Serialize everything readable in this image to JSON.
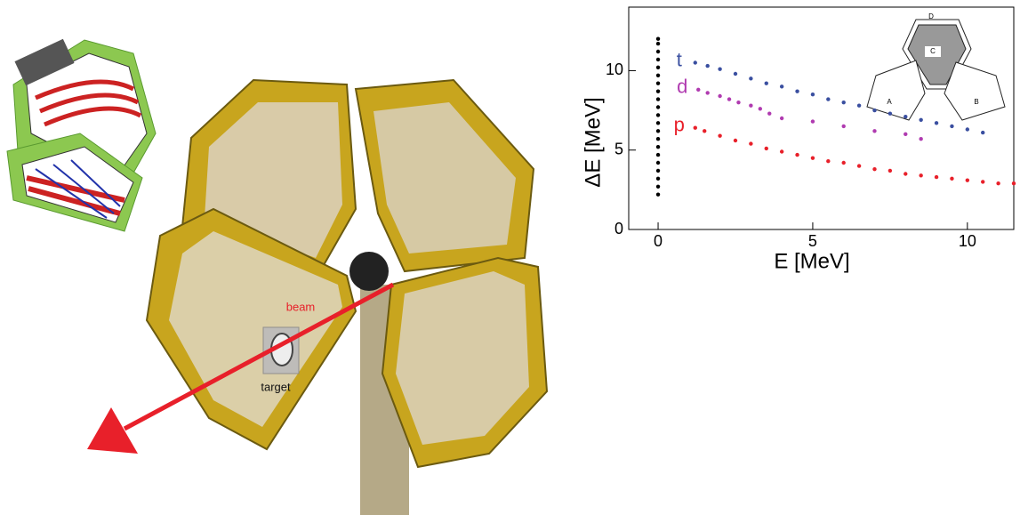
{
  "photo_labels": {
    "beam": "beam",
    "target": "target"
  },
  "inset": {
    "labels": [
      "A",
      "B",
      "C",
      "D"
    ]
  },
  "chart_data": {
    "type": "scatter",
    "x_label": "E  [MeV]",
    "y_label": "ΔE  [MeV]",
    "xlim": [
      -0.95,
      11.5
    ],
    "ylim": [
      0,
      14
    ],
    "xticks": [
      0,
      5,
      10
    ],
    "yticks": [
      0,
      5,
      10
    ],
    "series": [
      {
        "color": "#000000",
        "x": [
          0,
          0,
          0,
          0,
          0,
          0,
          0,
          0,
          0,
          0,
          0,
          0,
          0,
          0,
          0,
          0,
          0,
          0,
          0,
          0,
          0
        ],
        "values": [
          2.2,
          2.7,
          3.2,
          3.7,
          4.2,
          4.7,
          5.2,
          5.7,
          6.2,
          6.7,
          7.2,
          7.7,
          8.2,
          8.7,
          9.2,
          9.7,
          10.2,
          10.7,
          11.2,
          11.7,
          12.0
        ]
      },
      {
        "name": "t",
        "color": "#3a4fa0",
        "x": [
          1.2,
          1.6,
          2.0,
          2.5,
          3.0,
          3.5,
          4.0,
          4.5,
          5.0,
          5.5,
          6.0,
          6.5,
          7.0,
          7.5,
          8.0,
          8.5,
          9.0,
          9.5,
          10.0,
          10.5
        ],
        "values": [
          10.5,
          10.3,
          10.1,
          9.8,
          9.5,
          9.2,
          9.0,
          8.7,
          8.5,
          8.2,
          8.0,
          7.8,
          7.5,
          7.3,
          7.1,
          6.9,
          6.7,
          6.5,
          6.3,
          6.1
        ]
      },
      {
        "name": "d",
        "color": "#b03bb0",
        "x": [
          1.3,
          1.6,
          2.0,
          2.3,
          2.6,
          3.0,
          3.3,
          3.6,
          4.0,
          5.0,
          6.0,
          7.0,
          8.0,
          8.5
        ],
        "values": [
          8.8,
          8.6,
          8.4,
          8.2,
          8.0,
          7.8,
          7.6,
          7.3,
          7.0,
          6.8,
          6.5,
          6.2,
          6.0,
          5.7
        ]
      },
      {
        "name": "p",
        "color": "#e8202a",
        "x": [
          1.2,
          1.5,
          2.0,
          2.5,
          3.0,
          3.5,
          4.0,
          4.5,
          5.0,
          5.5,
          6.0,
          6.5,
          7.0,
          7.5,
          8.0,
          8.5,
          9.0,
          9.5,
          10.0,
          10.5,
          11.0,
          11.5
        ],
        "values": [
          6.4,
          6.2,
          5.9,
          5.6,
          5.4,
          5.1,
          4.9,
          4.7,
          4.5,
          4.3,
          4.2,
          4.0,
          3.8,
          3.7,
          3.5,
          3.4,
          3.3,
          3.2,
          3.1,
          3.0,
          2.9,
          2.9
        ]
      }
    ]
  }
}
